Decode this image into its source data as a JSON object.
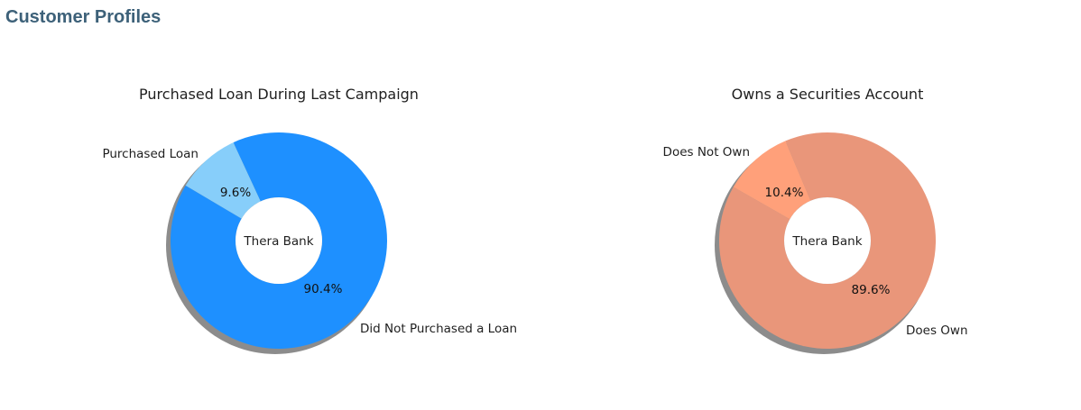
{
  "page": {
    "title": "Customer Profiles",
    "title_color": "#3d6179"
  },
  "chart_data": [
    {
      "type": "pie",
      "donut": true,
      "shadow": true,
      "title": "Purchased Loan During Last Campaign",
      "center_label": "Thera Bank",
      "slices": [
        {
          "label": "Did Not Purchased a Loan",
          "value": 90.4,
          "pct_label": "90.4%",
          "color": "#1e90ff"
        },
        {
          "label": "Purchased Loan",
          "value": 9.6,
          "pct_label": "9.6%",
          "color": "#87cefa"
        }
      ]
    },
    {
      "type": "pie",
      "donut": true,
      "shadow": true,
      "title": "Owns a Securities Account",
      "center_label": "Thera Bank",
      "slices": [
        {
          "label": "Does Own",
          "value": 89.6,
          "pct_label": "89.6%",
          "color": "#e9967a"
        },
        {
          "label": "Does Not Own",
          "value": 10.4,
          "pct_label": "10.4%",
          "color": "#ffa07a"
        }
      ]
    }
  ]
}
